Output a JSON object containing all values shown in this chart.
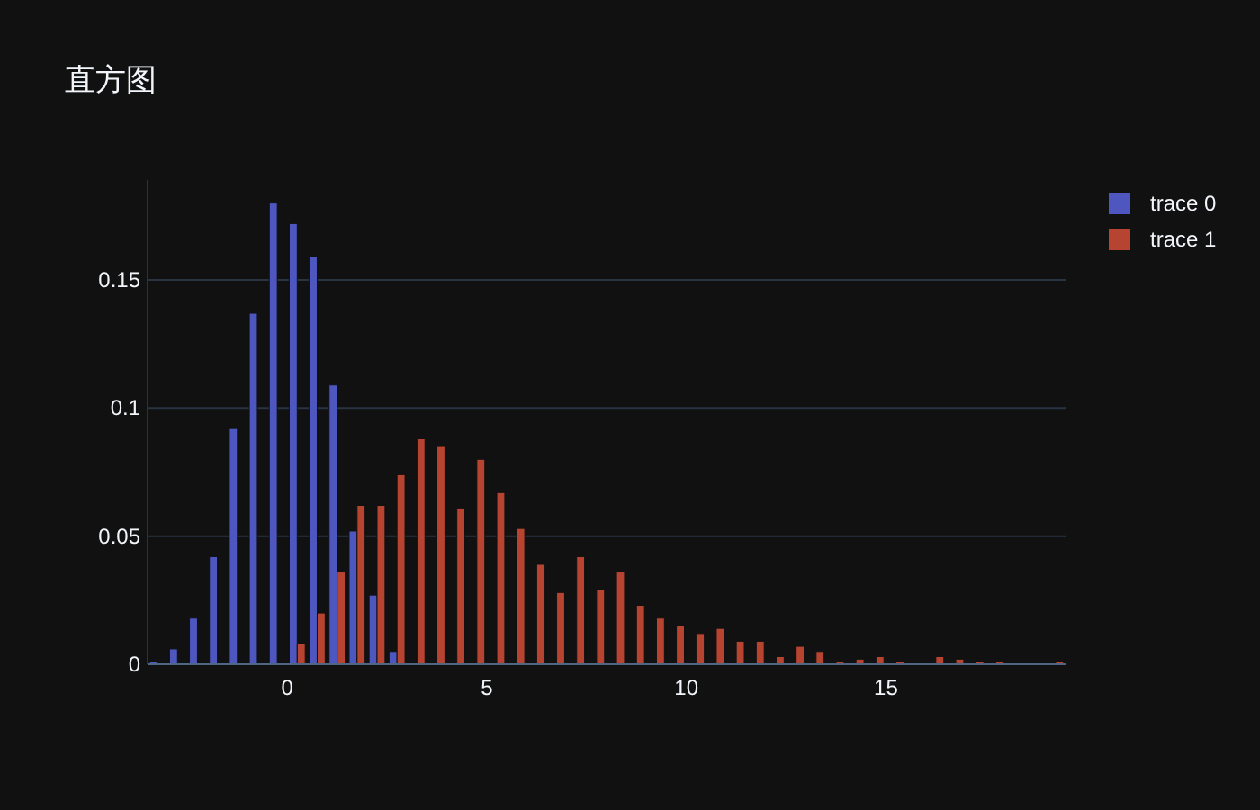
{
  "chart_data": {
    "type": "histogram",
    "title": "直方图",
    "bins": [
      -3.5,
      -3,
      -2.5,
      -2,
      -1.5,
      -1,
      -0.5,
      0,
      0.5,
      1,
      1.5,
      2,
      2.5,
      3,
      3.5,
      4,
      4.5,
      5,
      5.5,
      6,
      6.5,
      7,
      7.5,
      8,
      8.5,
      9,
      9.5,
      10,
      10.5,
      11,
      11.5,
      12,
      12.5,
      13,
      13.5,
      14,
      14.5,
      15,
      15.5,
      16,
      16.5,
      17,
      17.5,
      18,
      18.5,
      19,
      19.5
    ],
    "series": [
      {
        "name": "trace 0",
        "color": "#4e57c0",
        "values": [
          0.001,
          0.006,
          0.018,
          0.042,
          0.092,
          0.137,
          0.18,
          0.172,
          0.159,
          0.109,
          0.052,
          0.027,
          0.005,
          null,
          null,
          null,
          null,
          null,
          null,
          null,
          null,
          null,
          null,
          null,
          null,
          null,
          null,
          null,
          null,
          null,
          null,
          null,
          null,
          null,
          null,
          null,
          null,
          null,
          null,
          null,
          null,
          null,
          null,
          null,
          null,
          null
        ]
      },
      {
        "name": "trace 1",
        "color": "#b74430",
        "values": [
          null,
          null,
          null,
          null,
          null,
          null,
          null,
          0.008,
          0.02,
          0.036,
          0.062,
          0.062,
          0.074,
          0.088,
          0.085,
          0.061,
          0.08,
          0.067,
          0.053,
          0.039,
          0.028,
          0.042,
          0.029,
          0.036,
          0.023,
          0.018,
          0.015,
          0.012,
          0.014,
          0.009,
          0.009,
          0.003,
          0.007,
          0.005,
          0.001,
          0.002,
          0.003,
          0.001,
          0,
          0.003,
          0.002,
          0.001,
          0.001,
          0,
          0,
          0.001
        ]
      }
    ],
    "xlim": [
      -3.5,
      19.5
    ],
    "ylim": [
      0,
      0.189
    ],
    "xticks": [
      0,
      5,
      10,
      15
    ],
    "yticks": [
      0,
      0.05,
      0.1,
      0.15
    ],
    "grid": "y",
    "legend": "top right"
  }
}
